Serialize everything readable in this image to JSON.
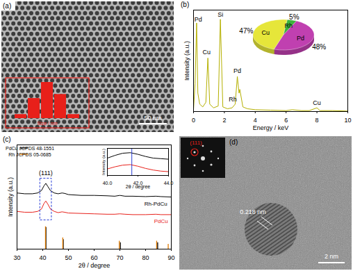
{
  "chart_data": [
    {
      "title": "(a)",
      "type": "image",
      "scale_bar": "50 nm",
      "inset": {
        "type": "bar",
        "values": [
          1,
          5,
          9,
          6,
          1
        ],
        "xlabel": "Size / nm",
        "color": "#e8201a",
        "tick_labels": false
      }
    },
    {
      "title": "(b)",
      "type": "line",
      "xlabel": "Energy / keV",
      "ylabel": "Intensity (a.u.)",
      "xlim": [
        0,
        10
      ],
      "xticks": [
        0,
        2,
        4,
        6,
        8,
        10
      ],
      "ylim": [
        0,
        110
      ],
      "tick_labels": "x",
      "color": "#b5b000",
      "x": [
        0,
        0.1,
        0.2,
        0.28,
        0.4,
        0.6,
        0.8,
        0.93,
        1.05,
        1.3,
        1.6,
        1.74,
        1.9,
        2.2,
        2.5,
        2.7,
        2.84,
        2.95,
        3.0,
        3.2,
        3.5,
        4,
        5,
        6,
        6.4,
        7,
        7.5,
        8.0,
        8.2,
        9,
        10
      ],
      "values": [
        2,
        30,
        96,
        20,
        8,
        5,
        10,
        58,
        8,
        4,
        6,
        100,
        5,
        3,
        4,
        8,
        38,
        20,
        24,
        5,
        3,
        2,
        1.5,
        1,
        2,
        1,
        1,
        4,
        1,
        1,
        0.5
      ],
      "annotations": [
        {
          "text": "Pd",
          "x": 0.3,
          "y": 100
        },
        {
          "text": "Cu",
          "x": 0.85,
          "y": 64
        },
        {
          "text": "Si",
          "x": 1.74,
          "y": 105
        },
        {
          "text": "Rh",
          "x": 2.55,
          "y": 13
        },
        {
          "text": "Pd",
          "x": 2.84,
          "y": 44
        },
        {
          "text": "Cu",
          "x": 8.0,
          "y": 9
        }
      ],
      "inset": {
        "type": "pie",
        "categories": [
          "Cu",
          "Rh",
          "Pd"
        ],
        "values": [
          47,
          5,
          48
        ],
        "value_labels": [
          "47%",
          "5%",
          "48%"
        ],
        "colors": [
          "#e6e63a",
          "#3cb33c",
          "#c040b0"
        ],
        "data_labels": true
      }
    },
    {
      "title": "(c)",
      "type": "line",
      "xlabel": "2θ / degree",
      "ylabel": "Intensity (a.u.)",
      "xlim": [
        30,
        90
      ],
      "xticks": [
        30,
        40,
        50,
        60,
        70,
        80,
        90
      ],
      "ylim": [
        0,
        130
      ],
      "tick_labels": "x",
      "legend": "top-left",
      "series": [
        {
          "name": "PdCu JCPDS 48-1551",
          "type": "stick",
          "color": "#000000",
          "x": [
            41.25,
            47.98,
            70.2,
            84.7
          ],
          "values": [
            27,
            12,
            8,
            8
          ]
        },
        {
          "name": "Rh JCPDS 05-0685",
          "type": "stick",
          "color": "#e07b00",
          "x": [
            41.07,
            47.79,
            69.78,
            84.3,
            88.8
          ],
          "values": [
            28,
            14,
            10,
            10,
            6
          ]
        },
        {
          "name": "Rh-PdCu",
          "type": "line",
          "color": "#000000",
          "label_at": [
            84,
            56
          ],
          "x": [
            30,
            33,
            36,
            38,
            39.5,
            40.5,
            41.2,
            42,
            43,
            44.5,
            46,
            47.5,
            48.5,
            50,
            55,
            60,
            65,
            68,
            70,
            72,
            75,
            80,
            84,
            86,
            90
          ],
          "values": [
            70,
            69,
            69,
            70,
            73,
            79,
            82,
            78,
            73,
            70,
            69,
            70,
            69.5,
            68,
            67,
            67,
            66.5,
            66,
            67,
            66,
            66,
            65.5,
            66,
            65.5,
            65
          ]
        },
        {
          "name": "PdCu",
          "type": "line",
          "color": "#e8201a",
          "label_at": [
            86,
            35
          ],
          "x": [
            30,
            33,
            36,
            38,
            39.5,
            40.5,
            41.2,
            42,
            43,
            44.5,
            46,
            47.5,
            48.5,
            50,
            55,
            60,
            65,
            68,
            70,
            72,
            75,
            80,
            84,
            86,
            90
          ],
          "values": [
            47,
            46,
            46,
            47,
            50,
            57,
            60,
            56,
            50,
            47,
            45.5,
            46.5,
            46,
            45,
            44.5,
            44,
            43.5,
            43.5,
            44,
            43.5,
            43,
            43,
            43.5,
            43,
            43
          ]
        }
      ],
      "annotations": [
        {
          "text": "(111)",
          "x": 41.2,
          "y": 95
        }
      ],
      "highlight": {
        "x": [
          39,
          43.5
        ],
        "y": [
          36,
          88
        ]
      },
      "inset": {
        "type": "line",
        "xlabel": "2θ / degree",
        "ylabel": "Intensity (a.u.)",
        "xlim": [
          40,
          44
        ],
        "xticks": [
          40,
          42,
          44
        ],
        "ylim": [
          40,
          90
        ],
        "tick_labels": "x",
        "reference_line": 41.6,
        "x": [
          40,
          40.5,
          41,
          41.5,
          42,
          42.5,
          43,
          43.5,
          44
        ],
        "series": [
          {
            "color": "#000000",
            "values": [
              72,
              77,
              81,
              82,
              79,
              75,
              72,
              71,
              70
            ]
          },
          {
            "color": "#e8201a",
            "values": [
              52,
              56,
              59,
              60,
              57,
              53,
              50,
              48,
              47
            ]
          }
        ]
      }
    },
    {
      "title": "(d)",
      "type": "image",
      "scale_bar": "2 nm",
      "annotations": [
        {
          "text": "0.218 nm"
        }
      ],
      "inset": {
        "type": "image",
        "annotations": [
          {
            "text": "(111)"
          }
        ]
      }
    }
  ]
}
